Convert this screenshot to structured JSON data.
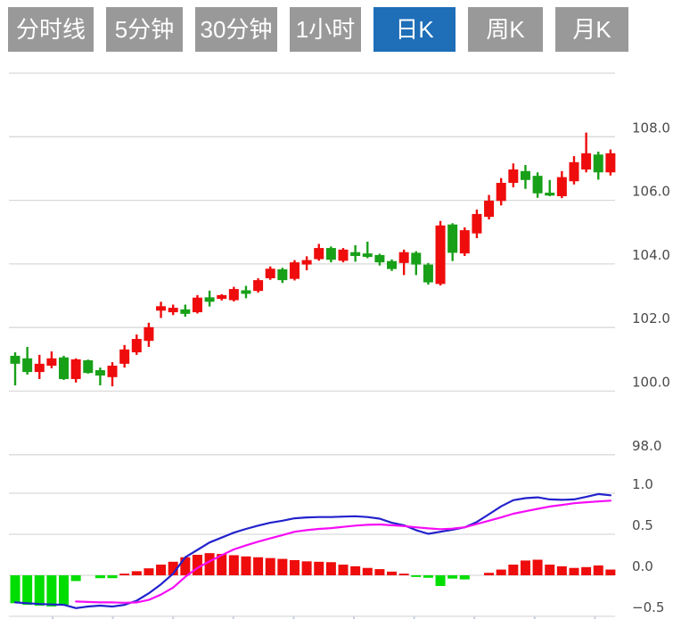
{
  "toolbar": {
    "tabs": [
      {
        "id": "time-line",
        "label": "分时线",
        "active": false
      },
      {
        "id": "5min",
        "label": "5分钟",
        "active": false
      },
      {
        "id": "30min",
        "label": "30分钟",
        "active": false
      },
      {
        "id": "1hour",
        "label": "1小时",
        "active": false
      },
      {
        "id": "day-k",
        "label": "日K",
        "active": true
      },
      {
        "id": "week-k",
        "label": "周K",
        "active": false
      },
      {
        "id": "month-k",
        "label": "月K",
        "active": false
      }
    ]
  },
  "colors": {
    "tab_bg": "#999999",
    "tab_active_bg": "#1e6eb8",
    "tab_text": "#ffffff",
    "up": "#ee0c0c",
    "down": "#18a018",
    "macd_bar_up": "#ee0c0c",
    "macd_bar_down": "#00dd00",
    "dif_line": "#2222cc",
    "dea_line": "#f50cf5",
    "grid": "#d9d9d9",
    "axis_label": "#4a4a4a",
    "x_tick": "#c4cede"
  },
  "chart_data": {
    "type": "candlestick",
    "title": "",
    "panels": [
      {
        "name": "price",
        "type": "candlestick",
        "y_axis": {
          "tick_labels": [
            "108.0",
            "106.0",
            "104.0",
            "102.0",
            "100.0",
            "98.0"
          ],
          "tick_values": [
            108,
            106,
            104,
            102,
            100,
            98
          ],
          "grid_values": [
            110,
            108,
            106,
            104,
            102,
            100,
            98
          ],
          "ylim": [
            97.2,
            110.0
          ]
        },
        "candles_format": [
          "open",
          "high",
          "low",
          "close"
        ],
        "candles": [
          [
            101.11,
            101.22,
            100.18,
            100.86
          ],
          [
            101.03,
            101.39,
            100.52,
            100.6
          ],
          [
            100.6,
            101.14,
            100.38,
            100.86
          ],
          [
            100.8,
            101.25,
            100.72,
            101.03
          ],
          [
            101.06,
            101.11,
            100.35,
            100.38
          ],
          [
            100.38,
            101.03,
            100.27,
            101.0
          ],
          [
            100.97,
            100.99,
            100.55,
            100.57
          ],
          [
            100.66,
            100.74,
            100.18,
            100.49
          ],
          [
            100.44,
            100.91,
            100.15,
            100.8
          ],
          [
            100.86,
            101.45,
            100.74,
            101.31
          ],
          [
            101.22,
            101.78,
            101.14,
            101.64
          ],
          [
            101.58,
            102.15,
            101.39,
            102.01
          ],
          [
            102.53,
            102.81,
            102.3,
            102.67
          ],
          [
            102.48,
            102.72,
            102.39,
            102.62
          ],
          [
            102.57,
            102.72,
            102.34,
            102.43
          ],
          [
            102.48,
            103.02,
            102.44,
            102.94
          ],
          [
            102.95,
            103.16,
            102.66,
            102.81
          ],
          [
            102.9,
            103.05,
            102.85,
            103.02
          ],
          [
            102.86,
            103.28,
            102.82,
            103.21
          ],
          [
            103.17,
            103.31,
            102.92,
            103.06
          ],
          [
            103.15,
            103.55,
            103.1,
            103.49
          ],
          [
            103.55,
            103.92,
            103.5,
            103.85
          ],
          [
            103.83,
            103.88,
            103.4,
            103.49
          ],
          [
            103.53,
            104.12,
            103.48,
            104.05
          ],
          [
            103.98,
            104.24,
            103.8,
            104.12
          ],
          [
            104.15,
            104.63,
            104.1,
            104.5
          ],
          [
            104.5,
            104.55,
            104.05,
            104.13
          ],
          [
            104.1,
            104.5,
            104.05,
            104.45
          ],
          [
            104.37,
            104.59,
            104.07,
            104.25
          ],
          [
            104.33,
            104.7,
            104.18,
            104.22
          ],
          [
            104.28,
            104.32,
            103.95,
            104.05
          ],
          [
            104.09,
            104.14,
            103.78,
            103.84
          ],
          [
            104.03,
            104.45,
            103.65,
            104.37
          ],
          [
            104.35,
            104.4,
            103.65,
            103.98
          ],
          [
            103.98,
            104.03,
            103.35,
            103.42
          ],
          [
            103.37,
            105.35,
            103.32,
            105.21
          ],
          [
            105.24,
            105.28,
            104.09,
            104.35
          ],
          [
            104.33,
            105.15,
            104.25,
            105.06
          ],
          [
            104.96,
            105.71,
            104.81,
            105.57
          ],
          [
            105.48,
            106.17,
            105.4,
            105.99
          ],
          [
            105.98,
            106.7,
            105.84,
            106.55
          ],
          [
            106.55,
            107.16,
            106.41,
            106.97
          ],
          [
            106.92,
            107.11,
            106.36,
            106.64
          ],
          [
            106.77,
            106.88,
            106.08,
            106.22
          ],
          [
            106.24,
            106.64,
            106.13,
            106.15
          ],
          [
            106.13,
            106.92,
            106.07,
            106.73
          ],
          [
            106.6,
            107.39,
            106.5,
            107.2
          ],
          [
            106.97,
            108.13,
            106.88,
            107.48
          ],
          [
            107.44,
            107.53,
            106.65,
            106.88
          ],
          [
            106.88,
            107.6,
            106.78,
            107.48
          ]
        ]
      },
      {
        "name": "macd",
        "type": "bar+line",
        "y_axis": {
          "tick_labels": [
            "1.0",
            "0.5",
            "0.0",
            "−0.5"
          ],
          "tick_values": [
            1.0,
            0.5,
            0.0,
            -0.5
          ],
          "grid_values": [
            1.0,
            0.5,
            0.0,
            -0.5
          ],
          "ylim": [
            -0.55,
            1.0
          ]
        },
        "x_axis": {
          "tick_count": 10,
          "labels": []
        },
        "series": [
          {
            "name": "MACD-histogram",
            "values": [
              -0.34,
              -0.36,
              -0.37,
              -0.38,
              -0.36,
              -0.07,
              0,
              -0.035,
              -0.035,
              0.02,
              0.05,
              0.085,
              0.13,
              0.165,
              0.22,
              0.25,
              0.27,
              0.26,
              0.245,
              0.23,
              0.22,
              0.21,
              0.2,
              0.185,
              0.17,
              0.165,
              0.16,
              0.13,
              0.11,
              0.09,
              0.075,
              0.045,
              0.02,
              -0.02,
              -0.03,
              -0.13,
              -0.04,
              -0.05,
              0,
              0.03,
              0.07,
              0.13,
              0.18,
              0.19,
              0.13,
              0.11,
              0.09,
              0.1,
              0.12,
              0.07
            ]
          },
          {
            "name": "DIF",
            "values": [
              -0.33,
              -0.34,
              -0.35,
              -0.355,
              -0.36,
              -0.4,
              -0.38,
              -0.37,
              -0.38,
              -0.36,
              -0.31,
              -0.22,
              -0.11,
              0.02,
              0.22,
              0.31,
              0.4,
              0.46,
              0.52,
              0.565,
              0.605,
              0.64,
              0.665,
              0.695,
              0.705,
              0.71,
              0.71,
              0.715,
              0.72,
              0.71,
              0.69,
              0.64,
              0.61,
              0.55,
              0.505,
              0.53,
              0.555,
              0.585,
              0.65,
              0.745,
              0.84,
              0.915,
              0.94,
              0.95,
              0.925,
              0.92,
              0.925,
              0.955,
              0.99,
              0.975
            ]
          },
          {
            "name": "DEA",
            "values": [
              null,
              null,
              null,
              null,
              null,
              -0.32,
              -0.325,
              -0.33,
              -0.33,
              -0.335,
              -0.33,
              -0.3,
              -0.235,
              -0.15,
              -0.02,
              0.09,
              0.17,
              0.245,
              0.315,
              0.365,
              0.41,
              0.45,
              0.49,
              0.53,
              0.55,
              0.565,
              0.575,
              0.59,
              0.605,
              0.615,
              0.62,
              0.61,
              0.6,
              0.585,
              0.572,
              0.562,
              0.568,
              0.585,
              0.625,
              0.665,
              0.705,
              0.75,
              0.78,
              0.81,
              0.838,
              0.858,
              0.878,
              0.89,
              0.9,
              0.91
            ]
          }
        ]
      }
    ]
  }
}
